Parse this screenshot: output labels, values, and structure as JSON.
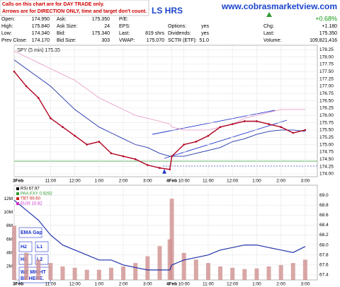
{
  "notice": [
    "Calls on this chart are for DAY TRADE only.",
    "Arrows are for DIRECTION ONLY, time and target don't count."
  ],
  "website": "www.cobrasmarketview.com",
  "fragment": "LS HRS",
  "quote": [
    [
      {
        "label": "Open:",
        "value": "174.950"
      },
      {
        "label": "High:",
        "value": "175.840"
      },
      {
        "label": "Low:",
        "value": "174.340"
      },
      {
        "label": "Prev Close:",
        "value": "174.170"
      }
    ],
    [
      {
        "label": "Ask:",
        "value": "175.350"
      },
      {
        "label": "Ask Size:",
        "value": "24"
      },
      {
        "label": "Bid:",
        "value": "175.340"
      },
      {
        "label": "Bid Size:",
        "value": "303"
      }
    ],
    [
      {
        "label": "P/E:",
        "value": ""
      },
      {
        "label": "EPS:",
        "value": ""
      },
      {
        "label": "Last:",
        "value": "819 shrs"
      },
      {
        "label": "VWAP:",
        "value": "175.070"
      }
    ],
    [
      {
        "label": "Options:",
        "value": "yes"
      },
      {
        "label": "Dividends:",
        "value": "yes"
      },
      {
        "label": "SCTR (ETF):",
        "value": "51.0"
      }
    ],
    [
      {
        "value": "+0.68%"
      },
      {
        "label": "Chg:",
        "value": "+1.180"
      },
      {
        "label": "Last:",
        "value": "175.350"
      },
      {
        "label": "Volume:",
        "value": "109,821,416"
      }
    ]
  ],
  "buttons": [
    "EMA Gap",
    "H2",
    "L1",
    "H1",
    "L2",
    "WE MIGHT BE HERE."
  ],
  "chart_data": [
    {
      "type": "line",
      "title": "SPY (5 min) 175.35",
      "x": [
        0,
        6,
        12,
        18,
        24,
        30,
        36,
        42,
        48,
        54,
        60,
        66,
        72,
        77,
        78,
        84,
        90,
        96,
        102,
        108,
        114,
        120,
        126,
        132,
        138,
        144
      ],
      "series": [
        {
          "color": "#b00020",
          "values": [
            177.5,
            177.0,
            176.6,
            175.9,
            175.6,
            175.3,
            175.0,
            175.1,
            174.7,
            174.6,
            174.5,
            174.3,
            174.2,
            174.15,
            174.6,
            175.0,
            175.1,
            175.3,
            175.6,
            175.7,
            175.8,
            175.8,
            175.7,
            175.6,
            175.4,
            175.5
          ]
        },
        {
          "color": "#2233aa",
          "values": [
            177.9,
            177.6,
            177.3,
            177.0,
            176.6,
            176.2,
            175.9,
            175.6,
            175.4,
            175.2,
            175.0,
            174.9,
            174.7,
            174.6,
            174.6,
            174.6,
            174.7,
            174.8,
            174.9,
            175.1,
            175.2,
            175.35,
            175.45,
            175.5,
            175.5,
            175.45
          ]
        },
        {
          "color": "#e8a0c8",
          "values": [
            178.2,
            178.0,
            177.8,
            177.6,
            177.4,
            177.2,
            176.9,
            176.6,
            176.4,
            176.2,
            176.0,
            175.9,
            175.8,
            175.7,
            175.6,
            175.5,
            175.5,
            175.5,
            175.6,
            175.7,
            175.9,
            176.0,
            176.1,
            176.2,
            176.2,
            176.2
          ]
        }
      ],
      "xlim": [
        0,
        150
      ],
      "xticks": [
        {
          "value": 0,
          "label": "3Feb"
        },
        {
          "value": 18,
          "label": "11:00"
        },
        {
          "value": 30,
          "label": "12:00"
        },
        {
          "value": 42,
          "label": "1:00"
        },
        {
          "value": 54,
          "label": "2:00"
        },
        {
          "value": 66,
          "label": "3:00"
        },
        {
          "value": 78,
          "label": "4Feb"
        },
        {
          "value": 84,
          "label": "10:00"
        },
        {
          "value": 96,
          "label": "11:00"
        },
        {
          "value": 108,
          "label": "12:00"
        },
        {
          "value": 120,
          "label": "1:00"
        },
        {
          "value": 132,
          "label": "2:00"
        },
        {
          "value": 144,
          "label": "3:00"
        }
      ],
      "ylim": [
        173.9,
        178.4
      ],
      "yticks": [
        {
          "value": 174,
          "label": "174.00"
        },
        174.25,
        {
          "value": 174.5,
          "label": "174.50"
        },
        174.75,
        {
          "value": 175,
          "label": "175.00"
        },
        175.25,
        {
          "value": 175.5,
          "label": "175.50"
        },
        175.75,
        {
          "value": 176,
          "label": "176.00"
        },
        176.25,
        {
          "value": 176.5,
          "label": "176.50"
        },
        176.75,
        {
          "value": 177,
          "label": "177.00"
        },
        177.25,
        {
          "value": 177.5,
          "label": "177.50"
        },
        177.75,
        {
          "value": 178,
          "label": "178.00"
        },
        178.25
      ],
      "grid": true
    },
    {
      "type": "combo",
      "legend": [
        {
          "name": "RSI 67.97",
          "color": "#000000"
        },
        {
          "name": "PAA:FXY 0.9292",
          "color": "#339933"
        },
        {
          "name": "TBT 69.60",
          "color": "#cc2222"
        },
        {
          "name": "EUIX 10.82",
          "color": "#cc33cc"
        }
      ],
      "x": [
        0,
        6,
        12,
        18,
        24,
        30,
        36,
        42,
        48,
        54,
        60,
        66,
        72,
        77,
        78,
        84,
        90,
        96,
        102,
        108,
        114,
        120,
        126,
        132,
        138,
        144
      ],
      "series": [
        {
          "color": "#2233aa",
          "values": [
            68.9,
            68.7,
            68.5,
            68.2,
            68.0,
            67.9,
            67.8,
            67.7,
            67.7,
            67.6,
            67.55,
            67.5,
            67.5,
            67.5,
            67.6,
            67.7,
            67.75,
            67.8,
            67.9,
            67.95,
            68.0,
            68.0,
            67.95,
            67.9,
            67.85,
            67.97
          ]
        },
        {
          "color": "#d09090",
          "axis": "y2",
          "values": [
            8,
            4,
            3,
            2.5,
            2,
            1.8,
            1.5,
            1.5,
            1.8,
            2,
            2.5,
            3.5,
            5,
            6,
            12,
            4,
            3,
            2.5,
            2,
            1.8,
            1.6,
            1.7,
            2,
            2.2,
            2.5,
            3
          ]
        }
      ],
      "xlim": [
        0,
        150
      ],
      "xticks": [
        {
          "value": 0,
          "label": "3Feb"
        },
        {
          "value": 18,
          "label": "11:00"
        },
        {
          "value": 30,
          "label": "12:00"
        },
        {
          "value": 42,
          "label": "1:00"
        },
        {
          "value": 54,
          "label": "2:00"
        },
        {
          "value": 66,
          "label": "3:00"
        },
        {
          "value": 78,
          "label": "4Feb"
        },
        {
          "value": 84,
          "label": "10:00"
        },
        {
          "value": 96,
          "label": "11:00"
        },
        {
          "value": 108,
          "label": "12:00"
        },
        {
          "value": 120,
          "label": "1:00"
        },
        {
          "value": 132,
          "label": "2:00"
        },
        {
          "value": 144,
          "label": "3:00"
        }
      ],
      "ylim": [
        67.3,
        69.2
      ],
      "yticks": [
        67.4,
        67.6,
        67.8,
        {
          "value": 68,
          "label": "68.0"
        },
        68.2,
        68.4,
        68.6,
        68.8,
        {
          "value": 69,
          "label": "69.0"
        }
      ],
      "y2lim": [
        0,
        14
      ],
      "y2ticks": [
        {
          "value": 2,
          "label": "2M"
        },
        {
          "value": 4,
          "label": "4M"
        },
        {
          "value": 6,
          "label": "6M"
        },
        {
          "value": 8,
          "label": "8M"
        },
        {
          "value": 10,
          "label": "10M"
        },
        {
          "value": 12,
          "label": "12M"
        }
      ],
      "grid": true
    }
  ]
}
